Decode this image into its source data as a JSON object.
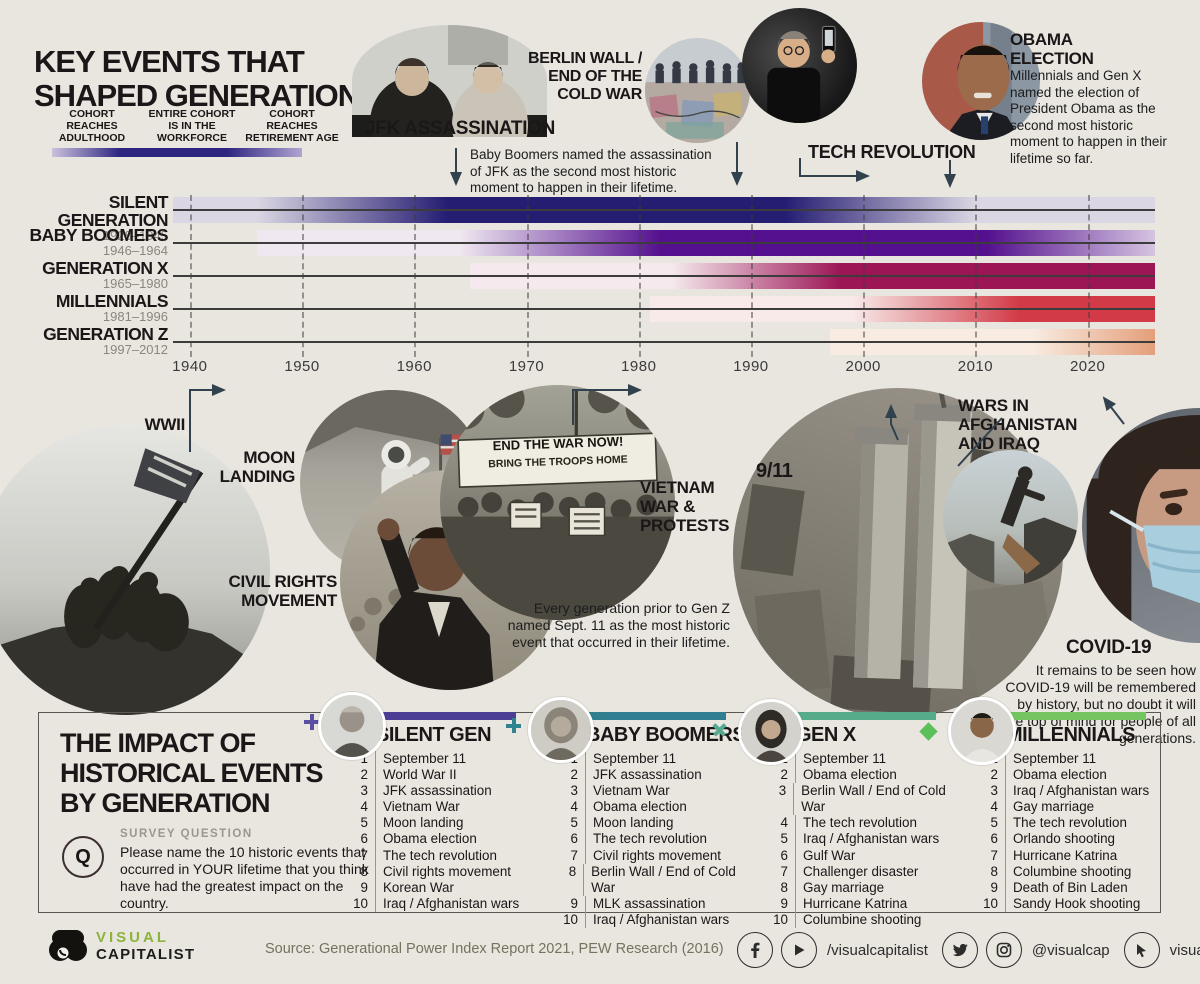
{
  "page": {
    "bg_color": "#e9e5df"
  },
  "header": {
    "title": "KEY EVENTS THAT\nSHAPED GENERATIONS",
    "legend": {
      "labels": [
        "COHORT\nREACHES\nADULTHOOD",
        "ENTIRE COHORT\nIS IN THE\nWORKFORCE",
        "COHORT\nREACHES\nRETIREMENT AGE"
      ],
      "dark_color": "#2e2581",
      "light_left": "#cbc2de",
      "light_right": "#b1a5d1"
    }
  },
  "top_events": {
    "jfk_label": "JFK ASSASSINATION",
    "jfk_caption": "Baby Boomers named the assassination of JFK as the second most historic moment to happen in their lifetime.",
    "berlin_label": "BERLIN WALL /\nEND OF THE\nCOLD WAR",
    "tech_label": "TECH REVOLUTION",
    "obama_label": "OBAMA\nELECTION",
    "obama_caption": "Millennials and Gen X named the election of President Obama as the second most historic moment to happen in their lifetime so far."
  },
  "chart_data": {
    "type": "timeline",
    "x_ticks": [
      1940,
      1950,
      1960,
      1970,
      1980,
      1990,
      2000,
      2010,
      2020
    ],
    "x_range": [
      1938.5,
      2026
    ],
    "phase_rule": "adulthood = birth+18, retirement = birth+65",
    "rows": [
      {
        "label": "SILENT GENERATION",
        "years": "1928–1945",
        "birth": [
          1928,
          1945
        ],
        "color": "#251d72",
        "light": "#dad6e3"
      },
      {
        "label": "BABY BOOMERS",
        "years": "1946–1964",
        "birth": [
          1946,
          1964
        ],
        "color": "#54108e",
        "light": "#efe8f1"
      },
      {
        "label": "GENERATION X",
        "years": "1965–1980",
        "birth": [
          1965,
          1980
        ],
        "color": "#9c1656",
        "light": "#f5e9ed"
      },
      {
        "label": "MILLENNIALS",
        "years": "1981–1996",
        "birth": [
          1981,
          1996
        ],
        "color": "#d23a47",
        "light": "#f7eae8"
      },
      {
        "label": "GENERATION Z",
        "years": "1997–2012",
        "birth": [
          1997,
          2012
        ],
        "color": "#dd8355",
        "light": "#f8ece2"
      }
    ]
  },
  "middle_events": {
    "wwii": "WWII",
    "moon": "MOON\nLANDING",
    "civil": "CIVIL RIGHTS\nMOVEMENT",
    "vietnam": "VIETNAM\nWAR &\nPROTESTS",
    "vietnam_banner1": "END THE WAR NOW!",
    "vietnam_banner2": "BRING THE TROOPS HOME",
    "nine11": "9/11",
    "nine11_caption": "Every generation prior to Gen Z named Sept. 11 as the most historic event that occurred in their lifetime.",
    "wars": "WARS IN\nAFGHANISTAN\nAND IRAQ",
    "covid": "COVID-19",
    "covid_caption": "It remains to be seen how COVID-19 will be remembered by history, but no doubt it will be top of mind for people of all generations."
  },
  "impact_panel": {
    "title": "THE IMPACT OF\nHISTORICAL EVENTS\nBY GENERATION",
    "q_label": "Q",
    "survey_label": "SURVEY QUESTION",
    "survey_text": "Please name the 10 historic events that occurred in YOUR lifetime that you think have had the greatest impact on the country.",
    "marker_colors": {
      "plus1": "#5a4fa2",
      "plus2": "#2f8391",
      "x": "#57a893",
      "diamond": "#5cbf5a"
    },
    "lists": [
      {
        "name": "SILENT GEN",
        "accent": "#4b3e94",
        "items": [
          "September 11",
          "World War II",
          "JFK assassination",
          "Vietnam War",
          "Moon landing",
          "Obama election",
          "The tech revolution",
          "Civil rights movement",
          "Korean War",
          "Iraq / Afghanistan wars"
        ]
      },
      {
        "name": "BABY BOOMERS",
        "accent": "#2f7f91",
        "items": [
          "September 11",
          "JFK assassination",
          "Vietnam War",
          "Obama election",
          "Moon landing",
          "The tech revolution",
          "Civil rights movement",
          "Berlin Wall / End of Cold War",
          "MLK assassination",
          "Iraq / Afghanistan wars"
        ]
      },
      {
        "name": "GEN X",
        "accent": "#56ab8b",
        "items": [
          "September 11",
          "Obama election",
          "Berlin Wall / End of Cold War",
          "The tech revolution",
          "Iraq / Afghanistan wars",
          "Gulf War",
          "Challenger disaster",
          "Gay marriage",
          "Hurricane Katrina",
          "Columbine shooting"
        ]
      },
      {
        "name": "MILLENNIALS",
        "accent": "#74c561",
        "items": [
          "September 11",
          "Obama election",
          "Iraq / Afghanistan wars",
          "Gay marriage",
          "The tech revolution",
          "Orlando shooting",
          "Hurricane Katrina",
          "Columbine shooting",
          "Death of Bin Laden",
          "Sandy Hook shooting"
        ]
      }
    ]
  },
  "footer": {
    "logo_top": "VISUAL",
    "logo_bottom": "CAPITALIST",
    "logo_green": "#8cb43a",
    "source": "Source: Generational Power Index Report 2021, PEW Research (2016)",
    "handle_fb_yt": "/visualcapitalist",
    "handle_tw_ig": "@visualcap",
    "website": "visualcapitalist.com"
  }
}
